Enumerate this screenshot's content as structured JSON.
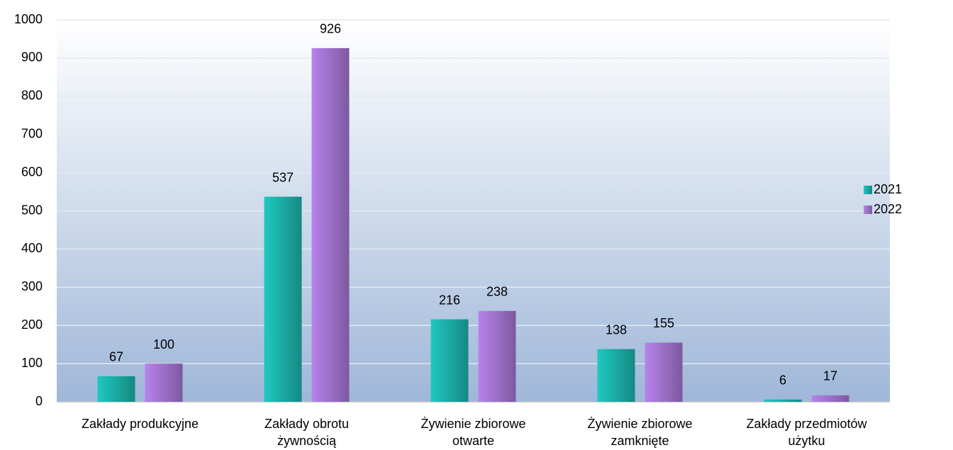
{
  "chart_data": {
    "type": "bar",
    "categories": [
      "Zakłady produkcyjne",
      "Zakłady obrotu żywnością",
      "Żywienie zbiorowe otwarte",
      "Żywienie zbiorowe zamknięte",
      "Zakłady przedmiotów użytku"
    ],
    "series": [
      {
        "name": "2021",
        "color": "#1fc9c0",
        "values": [
          67,
          537,
          216,
          138,
          6
        ]
      },
      {
        "name": "2022",
        "color": "#b883ec",
        "values": [
          100,
          926,
          238,
          155,
          17
        ]
      }
    ],
    "ylim": [
      0,
      1000
    ],
    "yticks": [
      0,
      100,
      200,
      300,
      400,
      500,
      600,
      700,
      800,
      900,
      1000
    ],
    "grid": true,
    "legend": "right"
  }
}
